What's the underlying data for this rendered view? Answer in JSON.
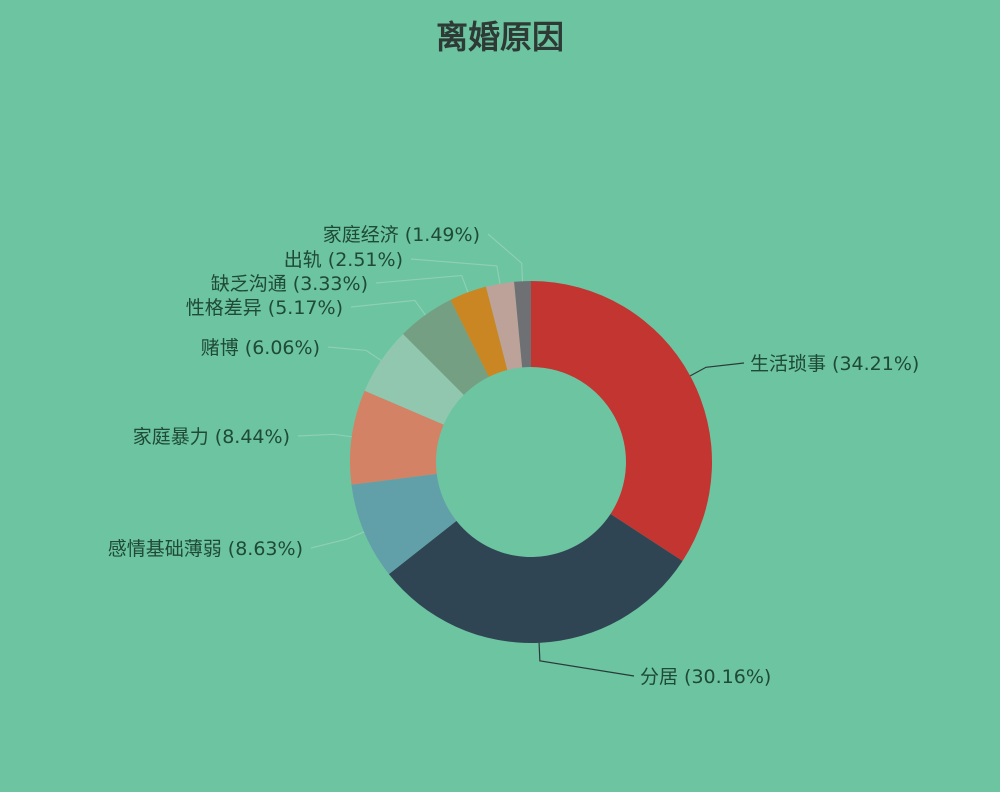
{
  "chart_data": {
    "type": "pie",
    "variant": "donut",
    "title": "离婚原因",
    "categories": [
      "生活琐事",
      "分居",
      "感情基础薄弱",
      "家庭暴力",
      "赌博",
      "性格差异",
      "缺乏沟通",
      "出轨",
      "家庭经济"
    ],
    "values": [
      34.21,
      30.16,
      8.63,
      8.44,
      6.06,
      5.17,
      3.33,
      2.51,
      1.49
    ],
    "unit": "%",
    "colors": [
      "#c23531",
      "#2f4554",
      "#61a0a8",
      "#d48265",
      "#91c7ae",
      "#749f83",
      "#ca8622",
      "#bda29a",
      "#6e7074"
    ],
    "background": "#6cc4a1",
    "label_color": "#1f4a35",
    "legend": "none"
  }
}
